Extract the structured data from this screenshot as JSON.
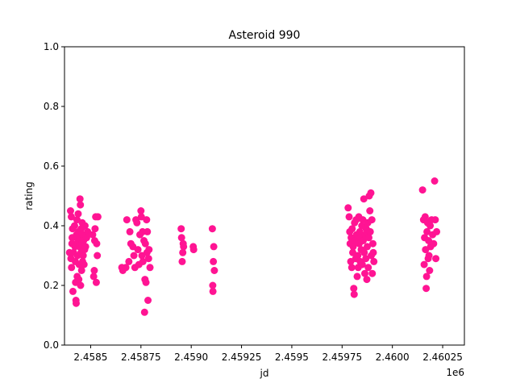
{
  "chart_data": {
    "type": "scatter",
    "title": "Asteroid 990",
    "xlabel": "jd",
    "ylabel": "rating",
    "x_offset_label": "1e6",
    "xlim": [
      2458370,
      2460358
    ],
    "ylim": [
      0.0,
      1.0
    ],
    "x_ticks": [
      2458500,
      2458750,
      2459000,
      2459250,
      2459500,
      2459750,
      2460000,
      2460250
    ],
    "x_tick_labels": [
      "2.4585",
      "2.45875",
      "2.4590",
      "2.45925",
      "2.4595",
      "2.45975",
      "2.4600",
      "2.46025"
    ],
    "y_ticks": [
      0.0,
      0.2,
      0.4,
      0.6,
      0.8,
      1.0
    ],
    "y_tick_labels": [
      "0.0",
      "0.2",
      "0.4",
      "0.6",
      "0.8",
      "1.0"
    ],
    "grid": false,
    "marker_color": "#ff1493",
    "points": [
      [
        2458395,
        0.31
      ],
      [
        2458400,
        0.45
      ],
      [
        2458402,
        0.29
      ],
      [
        2458404,
        0.43
      ],
      [
        2458405,
        0.26
      ],
      [
        2458407,
        0.34
      ],
      [
        2458408,
        0.36
      ],
      [
        2458410,
        0.39
      ],
      [
        2458412,
        0.18
      ],
      [
        2458415,
        0.31
      ],
      [
        2458420,
        0.4
      ],
      [
        2458422,
        0.33
      ],
      [
        2458424,
        0.28
      ],
      [
        2458425,
        0.21
      ],
      [
        2458427,
        0.15
      ],
      [
        2458428,
        0.14
      ],
      [
        2458430,
        0.37
      ],
      [
        2458432,
        0.42
      ],
      [
        2458433,
        0.23
      ],
      [
        2458435,
        0.3
      ],
      [
        2458437,
        0.35
      ],
      [
        2458438,
        0.44
      ],
      [
        2458440,
        0.38
      ],
      [
        2458441,
        0.22
      ],
      [
        2458443,
        0.27
      ],
      [
        2458444,
        0.33
      ],
      [
        2458446,
        0.36
      ],
      [
        2458447,
        0.49
      ],
      [
        2458449,
        0.47
      ],
      [
        2458450,
        0.2
      ],
      [
        2458452,
        0.31
      ],
      [
        2458453,
        0.39
      ],
      [
        2458455,
        0.25
      ],
      [
        2458456,
        0.34
      ],
      [
        2458458,
        0.41
      ],
      [
        2458460,
        0.28
      ],
      [
        2458461,
        0.37
      ],
      [
        2458463,
        0.3
      ],
      [
        2458465,
        0.35
      ],
      [
        2458467,
        0.27
      ],
      [
        2458470,
        0.32
      ],
      [
        2458472,
        0.4
      ],
      [
        2458475,
        0.33
      ],
      [
        2458480,
        0.36
      ],
      [
        2458485,
        0.38
      ],
      [
        2458510,
        0.37
      ],
      [
        2458515,
        0.23
      ],
      [
        2458518,
        0.25
      ],
      [
        2458520,
        0.35
      ],
      [
        2458522,
        0.39
      ],
      [
        2458525,
        0.43
      ],
      [
        2458528,
        0.21
      ],
      [
        2458530,
        0.34
      ],
      [
        2458533,
        0.3
      ],
      [
        2458536,
        0.43
      ],
      [
        2458655,
        0.26
      ],
      [
        2458660,
        0.25
      ],
      [
        2458675,
        0.26
      ],
      [
        2458680,
        0.42
      ],
      [
        2458690,
        0.28
      ],
      [
        2458695,
        0.38
      ],
      [
        2458700,
        0.34
      ],
      [
        2458710,
        0.33
      ],
      [
        2458715,
        0.3
      ],
      [
        2458720,
        0.26
      ],
      [
        2458725,
        0.42
      ],
      [
        2458730,
        0.41
      ],
      [
        2458735,
        0.32
      ],
      [
        2458740,
        0.27
      ],
      [
        2458745,
        0.37
      ],
      [
        2458750,
        0.45
      ],
      [
        2458752,
        0.43
      ],
      [
        2458755,
        0.3
      ],
      [
        2458758,
        0.38
      ],
      [
        2458760,
        0.28
      ],
      [
        2458765,
        0.35
      ],
      [
        2458768,
        0.11
      ],
      [
        2458770,
        0.22
      ],
      [
        2458772,
        0.34
      ],
      [
        2458775,
        0.21
      ],
      [
        2458778,
        0.42
      ],
      [
        2458780,
        0.31
      ],
      [
        2458782,
        0.38
      ],
      [
        2458785,
        0.15
      ],
      [
        2458788,
        0.29
      ],
      [
        2458790,
        0.32
      ],
      [
        2458795,
        0.26
      ],
      [
        2458950,
        0.39
      ],
      [
        2458952,
        0.36
      ],
      [
        2458955,
        0.28
      ],
      [
        2458958,
        0.31
      ],
      [
        2458960,
        0.34
      ],
      [
        2458962,
        0.33
      ],
      [
        2459010,
        0.33
      ],
      [
        2459012,
        0.32
      ],
      [
        2459105,
        0.39
      ],
      [
        2459107,
        0.2
      ],
      [
        2459108,
        0.18
      ],
      [
        2459110,
        0.28
      ],
      [
        2459112,
        0.33
      ],
      [
        2459115,
        0.25
      ],
      [
        2459780,
        0.46
      ],
      [
        2459785,
        0.43
      ],
      [
        2459788,
        0.38
      ],
      [
        2459790,
        0.34
      ],
      [
        2459793,
        0.28
      ],
      [
        2459795,
        0.36
      ],
      [
        2459798,
        0.26
      ],
      [
        2459800,
        0.39
      ],
      [
        2459803,
        0.31
      ],
      [
        2459805,
        0.33
      ],
      [
        2459808,
        0.19
      ],
      [
        2459810,
        0.17
      ],
      [
        2459812,
        0.41
      ],
      [
        2459815,
        0.35
      ],
      [
        2459818,
        0.29
      ],
      [
        2459820,
        0.42
      ],
      [
        2459822,
        0.37
      ],
      [
        2459825,
        0.23
      ],
      [
        2459828,
        0.3
      ],
      [
        2459830,
        0.26
      ],
      [
        2459833,
        0.43
      ],
      [
        2459835,
        0.34
      ],
      [
        2459838,
        0.38
      ],
      [
        2459840,
        0.28
      ],
      [
        2459843,
        0.36
      ],
      [
        2459845,
        0.32
      ],
      [
        2459848,
        0.4
      ],
      [
        2459850,
        0.27
      ],
      [
        2459853,
        0.42
      ],
      [
        2459855,
        0.35
      ],
      [
        2459858,
        0.49
      ],
      [
        2459860,
        0.31
      ],
      [
        2459863,
        0.24
      ],
      [
        2459865,
        0.37
      ],
      [
        2459868,
        0.29
      ],
      [
        2459870,
        0.39
      ],
      [
        2459873,
        0.22
      ],
      [
        2459875,
        0.33
      ],
      [
        2459878,
        0.41
      ],
      [
        2459880,
        0.26
      ],
      [
        2459883,
        0.36
      ],
      [
        2459885,
        0.5
      ],
      [
        2459888,
        0.45
      ],
      [
        2459890,
        0.38
      ],
      [
        2459893,
        0.51
      ],
      [
        2459895,
        0.3
      ],
      [
        2459898,
        0.42
      ],
      [
        2459900,
        0.24
      ],
      [
        2459903,
        0.34
      ],
      [
        2459905,
        0.31
      ],
      [
        2459908,
        0.28
      ],
      [
        2460150,
        0.52
      ],
      [
        2460155,
        0.42
      ],
      [
        2460158,
        0.27
      ],
      [
        2460160,
        0.36
      ],
      [
        2460163,
        0.43
      ],
      [
        2460165,
        0.32
      ],
      [
        2460168,
        0.19
      ],
      [
        2460170,
        0.23
      ],
      [
        2460172,
        0.38
      ],
      [
        2460175,
        0.41
      ],
      [
        2460178,
        0.29
      ],
      [
        2460180,
        0.35
      ],
      [
        2460182,
        0.3
      ],
      [
        2460185,
        0.25
      ],
      [
        2460188,
        0.4
      ],
      [
        2460190,
        0.33
      ],
      [
        2460195,
        0.42
      ],
      [
        2460200,
        0.37
      ],
      [
        2460205,
        0.34
      ],
      [
        2460210,
        0.55
      ],
      [
        2460213,
        0.42
      ],
      [
        2460216,
        0.29
      ],
      [
        2460220,
        0.38
      ]
    ]
  }
}
